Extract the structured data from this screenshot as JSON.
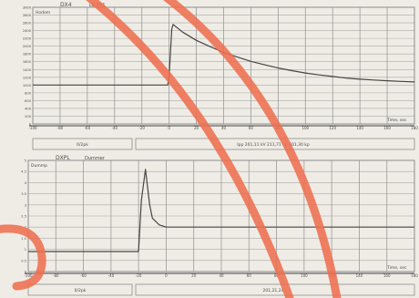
{
  "chart_data": [
    {
      "type": "line",
      "title": "DX4",
      "subtitle": "LE 4U1",
      "ylabel": "Hodom",
      "xlabel": "Time, sec",
      "xlim": [
        -100,
        180
      ],
      "ylim": [
        0,
        3000
      ],
      "x_ticks": [
        -100,
        -80,
        -60,
        -40,
        -20,
        0,
        20,
        40,
        60,
        80,
        100,
        120,
        140,
        160,
        180
      ],
      "y_ticks": [
        0,
        200,
        400,
        600,
        800,
        1000,
        1200,
        1400,
        1600,
        1800,
        2000,
        2200,
        2400,
        2600,
        2800,
        3000
      ],
      "grid": true,
      "series": [
        {
          "color": "#454545",
          "x": [
            -100,
            -80,
            -60,
            -40,
            -20,
            -5,
            -1,
            0,
            2,
            3,
            5,
            10,
            20,
            30,
            40,
            50,
            60,
            70,
            80,
            90,
            100,
            110,
            120,
            130,
            140,
            150,
            160,
            170,
            180
          ],
          "y": [
            1000,
            1000,
            1000,
            1000,
            1000,
            1000,
            1000,
            1200,
            2450,
            2560,
            2500,
            2360,
            2150,
            1990,
            1840,
            1720,
            1610,
            1520,
            1440,
            1370,
            1310,
            1260,
            1220,
            1180,
            1150,
            1130,
            1110,
            1095,
            1080
          ]
        }
      ],
      "footer_boxes": [
        "0/2pk",
        "Ipp 201,11 kV 211,71 kp 201,30 kp"
      ]
    },
    {
      "type": "line",
      "title": "DXPL",
      "subtitle": "Dummer",
      "ylabel": "Dummp",
      "xlabel": "Time, sec",
      "xlim": [
        -100,
        180
      ],
      "ylim": [
        0,
        5
      ],
      "x_ticks": [
        -100,
        -80,
        -60,
        -40,
        -20,
        0,
        20,
        40,
        60,
        80,
        100,
        120,
        140,
        160,
        180
      ],
      "y_ticks": [
        0,
        0.5,
        1,
        1.5,
        2,
        2.5,
        3,
        3.5,
        4,
        4.5,
        5
      ],
      "grid": true,
      "series": [
        {
          "color": "#454545",
          "x": [
            -100,
            -40,
            -20,
            -18,
            -15,
            -12,
            -10,
            -5,
            0,
            20,
            60,
            100,
            140,
            180
          ],
          "y": [
            0.9,
            0.9,
            0.9,
            3.2,
            4.6,
            3.0,
            2.4,
            2.1,
            2.0,
            2.0,
            2.0,
            2.0,
            2.0,
            2.0
          ]
        }
      ],
      "footer_boxes": [
        "0/2pk",
        "201,21,24"
      ]
    }
  ],
  "colors": {
    "paper": "#efece6",
    "grid": "#8d8d8d",
    "ink": "#454545",
    "highlighter": "#ee6f50"
  }
}
